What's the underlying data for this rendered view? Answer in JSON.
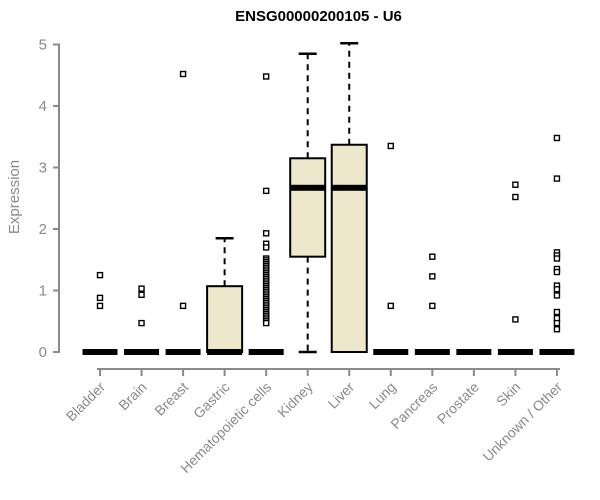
{
  "chart": {
    "title": "ENSG00000200105 - U6",
    "ylabel": "Expression"
  },
  "chart_data": {
    "type": "boxplot",
    "title": "ENSG00000200105 - U6",
    "xlabel": "",
    "ylabel": "Expression",
    "ylim": [
      0,
      5
    ],
    "yticks": [
      0,
      1,
      2,
      3,
      4,
      5
    ],
    "grid": false,
    "legend": false,
    "marker": "open-square",
    "colors": {
      "box_fill": "#EDE8CC",
      "box_border": "#000000",
      "median": "#000000",
      "axis": "#8a8a8a",
      "tick_label": "#8a8a8a",
      "title": "#000000"
    },
    "categories": [
      "Bladder",
      "Brain",
      "Breast",
      "Gastric",
      "Hematopoietic cells",
      "Kidney",
      "Liver",
      "Lung",
      "Pancreas",
      "Prostate",
      "Skin",
      "Unknown / Other"
    ],
    "boxes": [
      {
        "category": "Bladder",
        "q1": 0,
        "median": 0,
        "q3": 0,
        "whisker_low": 0,
        "whisker_high": 0,
        "outliers": [
          1.25,
          0.88,
          0.75
        ]
      },
      {
        "category": "Brain",
        "q1": 0,
        "median": 0,
        "q3": 0,
        "whisker_low": 0,
        "whisker_high": 0,
        "outliers": [
          1.03,
          0.93,
          0.47
        ]
      },
      {
        "category": "Breast",
        "q1": 0,
        "median": 0,
        "q3": 0,
        "whisker_low": 0,
        "whisker_high": 0,
        "outliers": [
          4.52,
          0.75
        ]
      },
      {
        "category": "Gastric",
        "q1": 0,
        "median": 0,
        "q3": 1.07,
        "whisker_low": 0,
        "whisker_high": 1.85,
        "outliers": []
      },
      {
        "category": "Hematopoietic cells",
        "q1": 0,
        "median": 0,
        "q3": 0,
        "whisker_low": 0,
        "whisker_high": 0,
        "outliers": [
          4.48,
          2.62,
          1.93,
          1.76,
          1.7,
          1.52,
          1.49,
          1.46,
          1.43,
          1.4,
          1.37,
          1.34,
          1.31,
          1.28,
          1.25,
          1.22,
          1.19,
          1.16,
          1.13,
          1.1,
          1.07,
          1.04,
          1.01,
          0.98,
          0.95,
          0.92,
          0.89,
          0.86,
          0.83,
          0.8,
          0.77,
          0.74,
          0.71,
          0.68,
          0.65,
          0.62,
          0.59,
          0.56,
          0.53,
          0.5,
          0.47
        ]
      },
      {
        "category": "Kidney",
        "q1": 1.55,
        "median": 2.67,
        "q3": 3.15,
        "whisker_low": 0,
        "whisker_high": 4.85,
        "outliers": []
      },
      {
        "category": "Liver",
        "q1": 0,
        "median": 2.67,
        "q3": 3.37,
        "whisker_low": 0,
        "whisker_high": 5.02,
        "outliers": []
      },
      {
        "category": "Lung",
        "q1": 0,
        "median": 0,
        "q3": 0,
        "whisker_low": 0,
        "whisker_high": 0,
        "outliers": [
          3.35,
          0.75
        ]
      },
      {
        "category": "Pancreas",
        "q1": 0,
        "median": 0,
        "q3": 0,
        "whisker_low": 0,
        "whisker_high": 0,
        "outliers": [
          1.55,
          1.23,
          0.75
        ]
      },
      {
        "category": "Prostate",
        "q1": 0,
        "median": 0,
        "q3": 0,
        "whisker_low": 0,
        "whisker_high": 0,
        "outliers": []
      },
      {
        "category": "Skin",
        "q1": 0,
        "median": 0,
        "q3": 0,
        "whisker_low": 0,
        "whisker_high": 0,
        "outliers": [
          2.72,
          2.52,
          0.53
        ]
      },
      {
        "category": "Unknown / Other",
        "q1": 0,
        "median": 0,
        "q3": 0,
        "whisker_low": 0,
        "whisker_high": 0,
        "outliers": [
          3.48,
          2.82,
          1.62,
          1.57,
          1.52,
          1.35,
          1.3,
          1.08,
          1.02,
          0.92,
          0.65,
          0.55,
          0.47,
          0.37
        ]
      }
    ]
  }
}
